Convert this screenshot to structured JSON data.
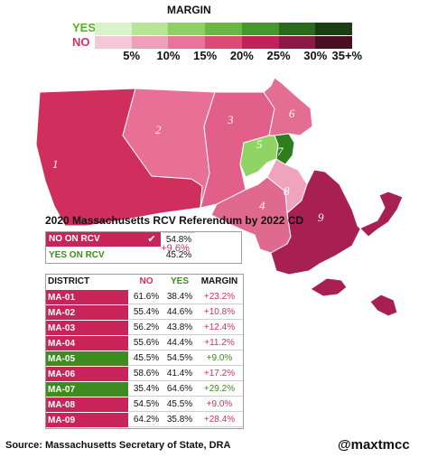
{
  "legend": {
    "title": "MARGIN",
    "yes_label": "YES",
    "no_label": "NO",
    "ticks": [
      "5%",
      "10%",
      "15%",
      "20%",
      "25%",
      "30%",
      "35+%"
    ],
    "yes_colors": [
      "#d9f2c9",
      "#b5e595",
      "#8fd066",
      "#6ab843",
      "#45982b",
      "#2a6b1e",
      "#173f11"
    ],
    "no_colors": [
      "#f3c9d6",
      "#ee9fba",
      "#e8739b",
      "#dc4a76",
      "#c1205a",
      "#8c1846",
      "#4a0f27"
    ]
  },
  "map": {
    "districts": [
      {
        "label": "1",
        "color": "#d02f5d"
      },
      {
        "label": "2",
        "color": "#e87096"
      },
      {
        "label": "3",
        "color": "#e15f88"
      },
      {
        "label": "4",
        "color": "#e06a8f"
      },
      {
        "label": "5",
        "color": "#8fd465"
      },
      {
        "label": "6",
        "color": "#e46d93"
      },
      {
        "label": "7",
        "color": "#2f7d1d"
      },
      {
        "label": "8",
        "color": "#f0a3bd"
      },
      {
        "label": "9",
        "color": "#a81f52"
      }
    ]
  },
  "summary": {
    "title": "2020 Massachusetts RCV Referendum by 2022 CD",
    "no_label": "NO ON RCV",
    "no_pct": "54.8%",
    "yes_label": "YES ON RCV",
    "yes_pct": "45.2%",
    "margin": "+9.6%",
    "no_color": "#c9245a",
    "yes_color": "#3e8c1f"
  },
  "table": {
    "headers": {
      "district": "DISTRICT",
      "no": "NO",
      "yes": "YES",
      "margin": "MARGIN"
    },
    "rows": [
      {
        "district": "MA-01",
        "no": "61.6%",
        "yes": "38.4%",
        "margin": "+23.2%",
        "color": "#c9245a",
        "margin_color": "#d6305f"
      },
      {
        "district": "MA-02",
        "no": "55.4%",
        "yes": "44.6%",
        "margin": "+10.8%",
        "color": "#c9245a",
        "margin_color": "#d6305f"
      },
      {
        "district": "MA-03",
        "no": "56.2%",
        "yes": "43.8%",
        "margin": "+12.4%",
        "color": "#c9245a",
        "margin_color": "#d6305f"
      },
      {
        "district": "MA-04",
        "no": "55.6%",
        "yes": "44.4%",
        "margin": "+11.2%",
        "color": "#c9245a",
        "margin_color": "#d6305f"
      },
      {
        "district": "MA-05",
        "no": "45.5%",
        "yes": "54.5%",
        "margin": "+9.0%",
        "color": "#3e8c1f",
        "margin_color": "#3e8c1f"
      },
      {
        "district": "MA-06",
        "no": "58.6%",
        "yes": "41.4%",
        "margin": "+17.2%",
        "color": "#c9245a",
        "margin_color": "#d6305f"
      },
      {
        "district": "MA-07",
        "no": "35.4%",
        "yes": "64.6%",
        "margin": "+29.2%",
        "color": "#3e8c1f",
        "margin_color": "#3e8c1f"
      },
      {
        "district": "MA-08",
        "no": "54.5%",
        "yes": "45.5%",
        "margin": "+9.0%",
        "color": "#c9245a",
        "margin_color": "#d6305f"
      },
      {
        "district": "MA-09",
        "no": "64.2%",
        "yes": "35.8%",
        "margin": "+28.4%",
        "color": "#c9245a",
        "margin_color": "#d6305f"
      }
    ]
  },
  "footer": {
    "source": "Source: Massachusetts Secretary of State, DRA",
    "credit": "@maxtmcc"
  }
}
